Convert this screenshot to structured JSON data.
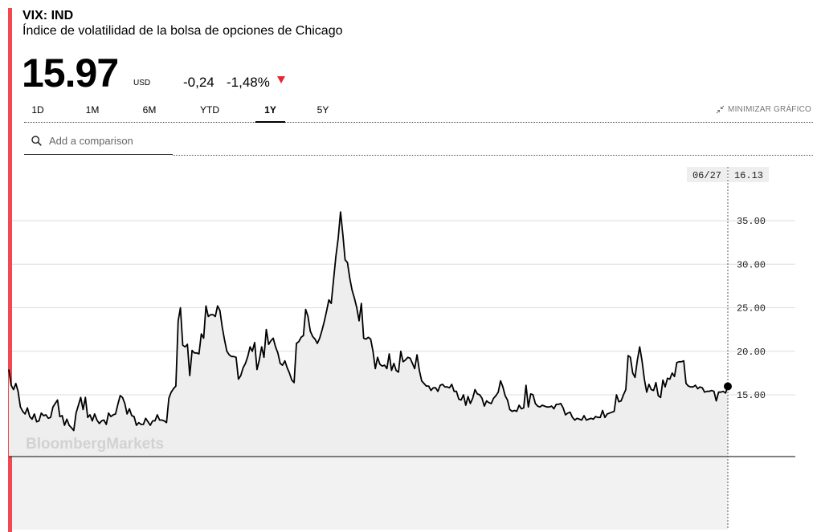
{
  "header": {
    "ticker": "VIX: IND",
    "name": "Índice de volatilidad de la bolsa de opciones de Chicago",
    "price": "15.97",
    "currency": "USD",
    "change": "-0,24",
    "change_pct": "-1,48%"
  },
  "tabs": [
    "1D",
    "1M",
    "6M",
    "YTD",
    "1Y",
    "5Y"
  ],
  "active_tab": "1Y",
  "minimize_label": "MINIMIZAR GRÁFICO",
  "compare_placeholder": "Add a comparison",
  "watermark": "BloombergMarkets",
  "colors": {
    "accent": "#f14950",
    "down": "#e8262e",
    "line": "#000000",
    "fill": "#eeeeee"
  },
  "chart_data": {
    "type": "area",
    "title": "",
    "xlabel": "",
    "ylabel": "",
    "y_ticks": [
      "15.00",
      "20.00",
      "25.00",
      "30.00",
      "35.00"
    ],
    "ylim": [
      7,
      37
    ],
    "hover": {
      "date": "06/27",
      "value": "16.13"
    },
    "grid": true,
    "series": [
      {
        "values": [
          17.9,
          16.1,
          15.6,
          16.3,
          15.4,
          13.6,
          13.1,
          12.8,
          13.5,
          12.5,
          12.2,
          12.8,
          11.9,
          12.0,
          12.9,
          12.6,
          12.7,
          12.3,
          12.4,
          13.6,
          14.0,
          14.4,
          12.5,
          12.6,
          11.5,
          12.2,
          11.5,
          11.2,
          10.9,
          12.9,
          13.8,
          14.7,
          13.3,
          14.7,
          12.4,
          12.7,
          12.0,
          12.8,
          12.1,
          11.7,
          12.0,
          12.1,
          11.6,
          12.9,
          12.5,
          12.7,
          12.8,
          13.9,
          14.9,
          14.7,
          14.0,
          12.8,
          13.4,
          12.6,
          12.5,
          11.5,
          11.8,
          11.6,
          11.6,
          12.3,
          11.9,
          11.5,
          12.0,
          12.0,
          12.7,
          12.1,
          12.1,
          12.0,
          11.8,
          14.6,
          15.3,
          15.7,
          16.0,
          23.5,
          25.0,
          20.7,
          20.5,
          20.8,
          17.2,
          20.1,
          19.8,
          19.8,
          19.7,
          22.0,
          21.5,
          25.2,
          24.0,
          24.2,
          24.2,
          24.0,
          25.2,
          24.7,
          22.8,
          21.3,
          20.0,
          19.6,
          19.4,
          19.4,
          19.3,
          16.8,
          17.2,
          18.1,
          18.6,
          19.4,
          20.5,
          20.0,
          21.0,
          17.9,
          19.0,
          20.5,
          19.3,
          22.5,
          20.8,
          21.2,
          21.5,
          20.5,
          19.8,
          18.6,
          18.4,
          18.9,
          18.1,
          17.5,
          16.7,
          16.4,
          20.9,
          21.1,
          21.6,
          21.8,
          24.8,
          24.0,
          22.3,
          21.7,
          21.4,
          20.9,
          21.5,
          22.4,
          23.4,
          24.6,
          25.9,
          25.5,
          28.2,
          30.9,
          33.0,
          36.0,
          33.5,
          30.5,
          30.2,
          28.4,
          27.0,
          26.1,
          25.0,
          23.5,
          25.5,
          21.5,
          21.4,
          21.6,
          21.4,
          20.0,
          18.0,
          19.3,
          18.5,
          18.3,
          18.4,
          18.0,
          19.7,
          17.8,
          18.6,
          17.8,
          17.6,
          20.0,
          18.8,
          19.0,
          19.3,
          19.2,
          18.6,
          18.0,
          19.6,
          17.8,
          16.6,
          16.3,
          16.0,
          16.0,
          15.5,
          15.8,
          15.8,
          15.4,
          16.1,
          16.2,
          15.9,
          15.9,
          15.8,
          16.2,
          15.4,
          15.4,
          14.5,
          14.4,
          15.0,
          13.8,
          14.8,
          14.0,
          14.6,
          15.6,
          15.1,
          15.0,
          14.6,
          13.7,
          14.3,
          14.1,
          14.0,
          14.6,
          14.9,
          15.3,
          16.6,
          15.9,
          14.9,
          14.4,
          13.3,
          13.1,
          13.2,
          13.1,
          13.8,
          13.4,
          13.5,
          16.1,
          13.6,
          15.1,
          15.0,
          14.0,
          13.7,
          13.6,
          13.8,
          13.7,
          13.6,
          13.6,
          13.7,
          13.4,
          13.9,
          13.9,
          14.0,
          13.5,
          12.7,
          12.9,
          13.0,
          12.4,
          12.1,
          12.3,
          12.2,
          12.1,
          12.6,
          12.1,
          12.2,
          12.3,
          12.2,
          12.5,
          12.4,
          12.4,
          13.2,
          12.4,
          12.8,
          12.9,
          13.0,
          13.1,
          15.0,
          14.2,
          14.3,
          15.0,
          15.6,
          19.5,
          19.3,
          17.5,
          17.0,
          19.0,
          20.5,
          18.9,
          16.8,
          15.3,
          16.2,
          15.6,
          15.5,
          16.4,
          14.9,
          14.7,
          16.7,
          15.9,
          16.9,
          16.8,
          17.5,
          17.1,
          18.7,
          18.8,
          18.8,
          18.9,
          16.3,
          16.0,
          15.9,
          15.9,
          16.1,
          15.7,
          15.9,
          15.8,
          15.3,
          15.4,
          15.4,
          15.5,
          15.4,
          14.3,
          15.3,
          15.3,
          15.4,
          15.2,
          15.97
        ]
      }
    ]
  }
}
